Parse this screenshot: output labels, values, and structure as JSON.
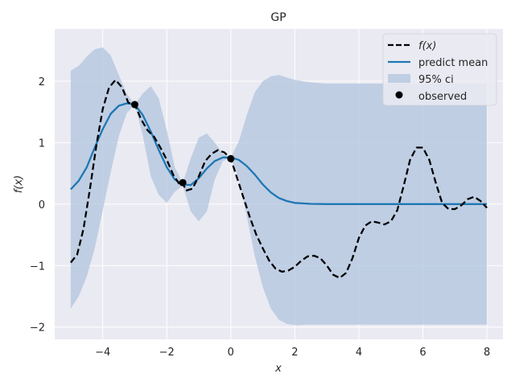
{
  "chart_data": {
    "type": "line",
    "title": "GP",
    "xlabel": "x",
    "ylabel": "f(x)",
    "xlim": [
      -5.5,
      8.5
    ],
    "ylim": [
      -2.2,
      2.85
    ],
    "xticks": [
      -4,
      -2,
      0,
      2,
      4,
      6,
      8
    ],
    "yticks": [
      -2,
      -1,
      0,
      1,
      2
    ],
    "xtick_labels": [
      "−4",
      "−2",
      "0",
      "2",
      "4",
      "6",
      "8"
    ],
    "ytick_labels": [
      "−2",
      "−1",
      "0",
      "1",
      "2"
    ],
    "grid": true,
    "legend_position": "top-right",
    "colors": {
      "background": "#eaeaf2",
      "grid": "#ffffff",
      "true_function": "#000000",
      "mean": "#1f77b4",
      "ci": "#b0c4de",
      "observed": "#000000"
    },
    "series": [
      {
        "name": "f(x)",
        "style": "dashed",
        "x": [
          -5,
          -4.8,
          -4.6,
          -4.4,
          -4.2,
          -4,
          -3.8,
          -3.6,
          -3.4,
          -3.2,
          -3,
          -2.8,
          -2.6,
          -2.4,
          -2.2,
          -2,
          -1.8,
          -1.6,
          -1.5,
          -1.4,
          -1.2,
          -1,
          -0.8,
          -0.6,
          -0.4,
          -0.2,
          0,
          0.2,
          0.4,
          0.6,
          0.8,
          1,
          1.2,
          1.4,
          1.6,
          1.8,
          2,
          2.2,
          2.4,
          2.6,
          2.8,
          3,
          3.2,
          3.4,
          3.6,
          3.8,
          4,
          4.2,
          4.4,
          4.6,
          4.8,
          5,
          5.2,
          5.4,
          5.6,
          5.8,
          6,
          6.2,
          6.4,
          6.6,
          6.8,
          7,
          7.2,
          7.4,
          7.6,
          7.8,
          8
        ],
        "y": [
          -0.95,
          -0.82,
          -0.4,
          0.25,
          0.95,
          1.55,
          1.9,
          2.02,
          1.9,
          1.65,
          1.62,
          1.38,
          1.2,
          1.1,
          0.92,
          0.72,
          0.48,
          0.32,
          0.35,
          0.22,
          0.25,
          0.45,
          0.7,
          0.82,
          0.88,
          0.84,
          0.74,
          0.42,
          0.1,
          -0.22,
          -0.5,
          -0.72,
          -0.92,
          -1.05,
          -1.1,
          -1.08,
          -1.02,
          -0.92,
          -0.85,
          -0.84,
          -0.88,
          -1.0,
          -1.15,
          -1.2,
          -1.12,
          -0.88,
          -0.55,
          -0.35,
          -0.28,
          -0.3,
          -0.33,
          -0.28,
          -0.1,
          0.3,
          0.72,
          0.92,
          0.92,
          0.72,
          0.35,
          0.02,
          -0.08,
          -0.08,
          -0.02,
          0.08,
          0.12,
          0.05,
          -0.06
        ]
      },
      {
        "name": "predict mean",
        "style": "solid",
        "x": [
          -5,
          -4.75,
          -4.5,
          -4.25,
          -4,
          -3.75,
          -3.5,
          -3.25,
          -3,
          -2.75,
          -2.5,
          -2.25,
          -2,
          -1.75,
          -1.5,
          -1.25,
          -1,
          -0.75,
          -0.5,
          -0.25,
          0,
          0.25,
          0.5,
          0.75,
          1,
          1.25,
          1.5,
          1.75,
          2,
          2.5,
          3,
          3.5,
          4,
          5,
          6,
          7,
          8
        ],
        "y": [
          0.24,
          0.38,
          0.6,
          0.92,
          1.22,
          1.47,
          1.6,
          1.64,
          1.62,
          1.45,
          1.18,
          0.88,
          0.6,
          0.4,
          0.32,
          0.31,
          0.42,
          0.58,
          0.7,
          0.76,
          0.76,
          0.72,
          0.62,
          0.48,
          0.32,
          0.19,
          0.1,
          0.05,
          0.02,
          0.005,
          0.0,
          0.0,
          0.0,
          0.0,
          0.0,
          0.0,
          0.0
        ]
      },
      {
        "name": "95% ci",
        "style": "band",
        "x": [
          -5,
          -4.75,
          -4.5,
          -4.25,
          -4,
          -3.75,
          -3.5,
          -3.25,
          -3,
          -2.75,
          -2.5,
          -2.25,
          -2,
          -1.75,
          -1.5,
          -1.25,
          -1,
          -0.75,
          -0.5,
          -0.25,
          0,
          0.25,
          0.5,
          0.75,
          1,
          1.25,
          1.5,
          1.75,
          2,
          2.5,
          3,
          3.5,
          4,
          5,
          6,
          7,
          8
        ],
        "upper": [
          2.17,
          2.25,
          2.4,
          2.52,
          2.55,
          2.42,
          2.1,
          1.8,
          1.62,
          1.8,
          1.92,
          1.72,
          1.2,
          0.6,
          0.34,
          0.75,
          1.08,
          1.15,
          1.0,
          0.82,
          0.76,
          1.02,
          1.45,
          1.82,
          2.0,
          2.08,
          2.1,
          2.06,
          2.02,
          1.98,
          1.96,
          1.96,
          1.96,
          1.96,
          1.96,
          1.96,
          1.96
        ],
        "lower": [
          -1.7,
          -1.5,
          -1.18,
          -0.72,
          -0.1,
          0.52,
          1.1,
          1.48,
          1.62,
          1.12,
          0.45,
          0.15,
          0.02,
          0.2,
          0.3,
          -0.12,
          -0.28,
          -0.12,
          0.4,
          0.7,
          0.76,
          0.42,
          -0.2,
          -0.85,
          -1.35,
          -1.7,
          -1.88,
          -1.95,
          -1.97,
          -1.96,
          -1.96,
          -1.96,
          -1.96,
          -1.96,
          -1.96,
          -1.96,
          -1.96
        ]
      },
      {
        "name": "observed",
        "style": "markers",
        "x": [
          -3,
          -1.5,
          0
        ],
        "y": [
          1.62,
          0.35,
          0.74
        ]
      }
    ]
  }
}
